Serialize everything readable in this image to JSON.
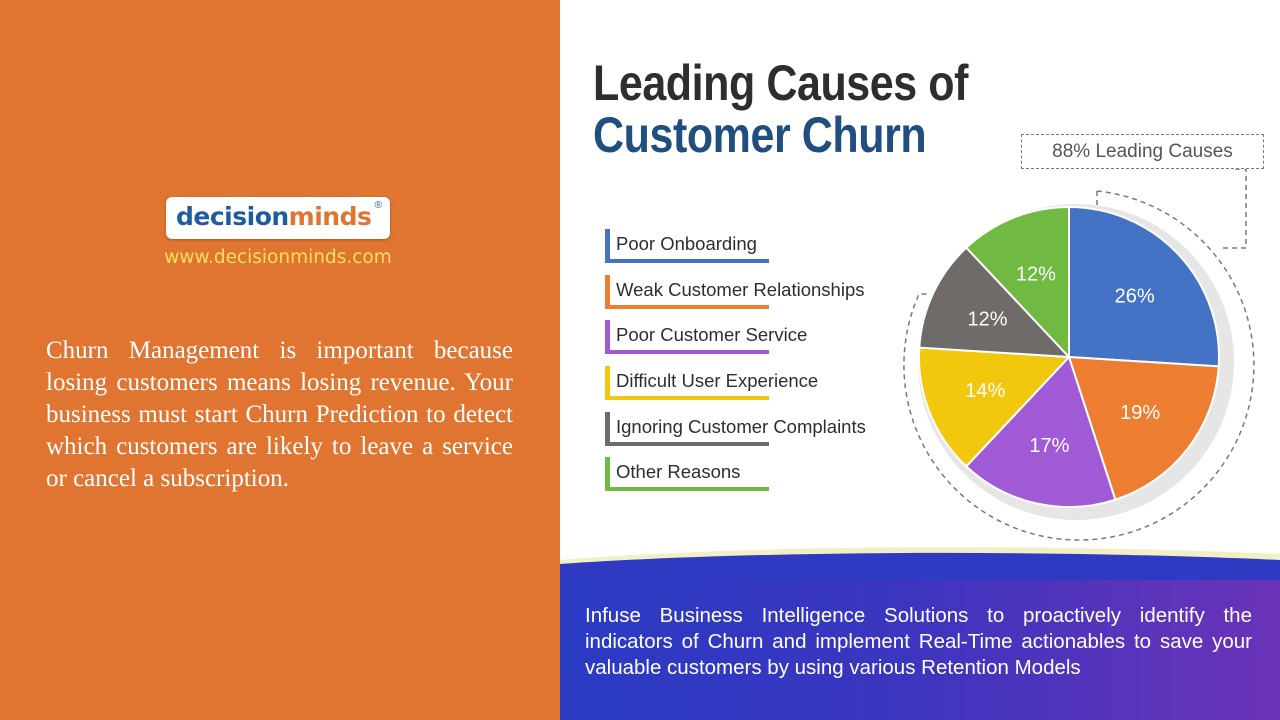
{
  "brand": {
    "logo_part1": "decision",
    "logo_part2": "minds",
    "registered_mark": "®",
    "website": "www.decisionminds.com"
  },
  "left_panel": {
    "paragraph": "Churn Management is important because losing customers means losing revenue. Your business must start Churn Prediction to detect which customers are likely to leave a service or cancel a subscription."
  },
  "title": {
    "line1": "Leading Causes of",
    "line2": "Customer Churn"
  },
  "callout": "88% Leading Causes",
  "banner": {
    "text": "Infuse Business Intelligence Solutions to proactively identify the indicators of Churn and implement Real-Time actionables to save your valuable customers by using various Retention Models"
  },
  "colors": {
    "orange_panel": "#e07532",
    "blue": "#4472c4",
    "orange": "#ed7d31",
    "purple": "#a05ad6",
    "yellow": "#f2c80f",
    "gray": "#6e6b68",
    "green": "#70ba44"
  },
  "chart_data": {
    "type": "pie",
    "title": "Leading Causes of Customer Churn",
    "categories": [
      "Poor Onboarding",
      "Weak Customer Relationships",
      "Poor Customer Service",
      "Difficult User Experience",
      "Ignoring Customer Complaints",
      "Other Reasons"
    ],
    "values": [
      26,
      19,
      17,
      14,
      12,
      12
    ],
    "labels": [
      "26%",
      "19%",
      "17%",
      "14%",
      "12%",
      "12%"
    ],
    "colors": [
      "#4472c4",
      "#ed7d31",
      "#a05ad6",
      "#f2c80f",
      "#6e6b68",
      "#70ba44"
    ],
    "legend_position": "left",
    "annotation": "88% Leading Causes"
  }
}
